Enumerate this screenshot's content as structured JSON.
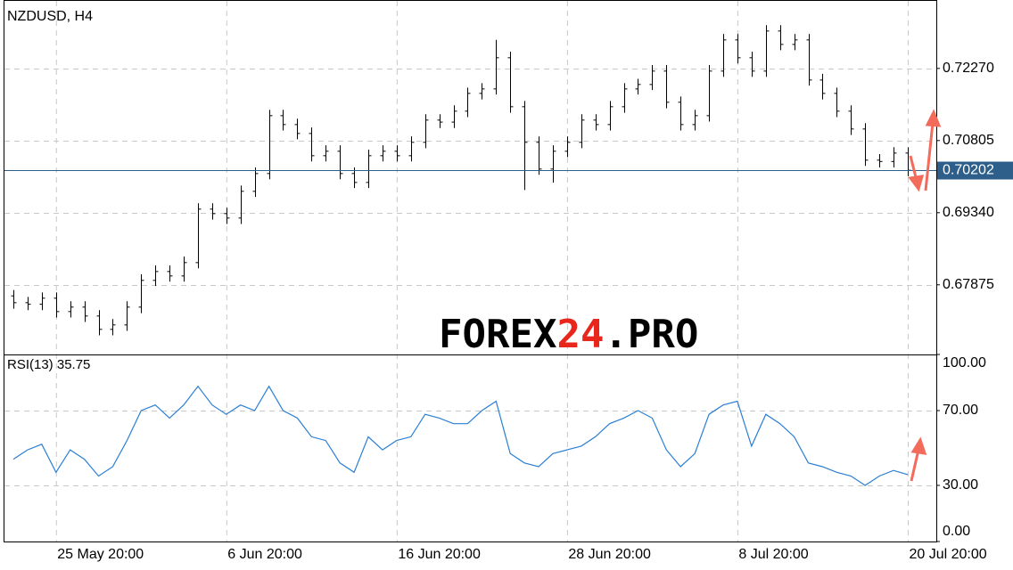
{
  "chart_data": [
    {
      "type": "ohlc",
      "title": "NZDUSD, H4",
      "color": "#000000",
      "last_price_color": "#2e5f8a",
      "watermark": [
        "FOREX",
        "24",
        ".PRO"
      ],
      "watermark_colors": [
        "#000000",
        "#e8261c",
        "#000000"
      ],
      "categories": [
        null,
        null,
        null,
        "25 May 20:00",
        null,
        null,
        null,
        null,
        null,
        null,
        null,
        null,
        null,
        null,
        null,
        "6 Jun 20:00",
        null,
        null,
        null,
        null,
        null,
        null,
        null,
        null,
        null,
        null,
        null,
        "16 Jun 20:00",
        null,
        null,
        null,
        null,
        null,
        null,
        null,
        null,
        null,
        null,
        null,
        "28 Jun 20:00",
        null,
        null,
        null,
        null,
        null,
        null,
        null,
        null,
        null,
        null,
        null,
        "8 Jul 20:00",
        null,
        null,
        null,
        null,
        null,
        null,
        null,
        null,
        null,
        null,
        null,
        "20 Jul 20:00"
      ],
      "open": [
        0.6765,
        0.67512,
        0.6748,
        0.67603,
        0.67331,
        0.67422,
        0.67241,
        0.6697,
        0.6706,
        0.67422,
        0.67965,
        0.68145,
        0.68055,
        0.68326,
        0.69412,
        0.69321,
        0.69231,
        0.69774,
        0.70135,
        0.71311,
        0.7113,
        0.70949,
        0.70497,
        0.70588,
        0.70135,
        0.69954,
        0.70497,
        0.70588,
        0.70497,
        0.70769,
        0.71221,
        0.7118,
        0.71402,
        0.71763,
        0.71854,
        0.72487,
        0.71492,
        0.70769,
        0.70226,
        0.70588,
        0.70769,
        0.71221,
        0.7113,
        0.71492,
        0.71854,
        0.71944,
        0.72216,
        0.71583,
        0.7113,
        0.71311,
        0.72216,
        0.72849,
        0.72487,
        0.72216,
        0.7303,
        0.72758,
        0.72849,
        0.72035,
        0.71763,
        0.71402,
        0.7104,
        0.70407,
        0.7038,
        0.70551
      ],
      "high": [
        0.6777,
        0.6763,
        0.6772,
        0.6772,
        0.6754,
        0.6754,
        0.6736,
        0.6718,
        0.6754,
        0.6809,
        0.6827,
        0.6827,
        0.6845,
        0.6953,
        0.6953,
        0.6944,
        0.6989,
        0.7026,
        0.7143,
        0.7143,
        0.7125,
        0.7107,
        0.7071,
        0.7071,
        0.7026,
        0.7062,
        0.7071,
        0.7071,
        0.7089,
        0.7134,
        0.7134,
        0.7152,
        0.7188,
        0.7197,
        0.7285,
        0.7261,
        0.7161,
        0.7089,
        0.7071,
        0.7089,
        0.7134,
        0.7134,
        0.7161,
        0.7197,
        0.7206,
        0.7234,
        0.7234,
        0.717,
        0.7143,
        0.7234,
        0.7297,
        0.7297,
        0.7261,
        0.7315,
        0.7315,
        0.7297,
        0.7297,
        0.7216,
        0.7188,
        0.7152,
        0.7116,
        0.7053,
        0.7067,
        0.7067
      ],
      "low": [
        0.6739,
        0.6736,
        0.6736,
        0.6721,
        0.6721,
        0.6712,
        0.6685,
        0.6685,
        0.6694,
        0.673,
        0.6785,
        0.6794,
        0.6794,
        0.6821,
        0.692,
        0.6911,
        0.6911,
        0.6966,
        0.7002,
        0.7101,
        0.7083,
        0.7038,
        0.7038,
        0.7002,
        0.6984,
        0.6984,
        0.7038,
        0.7038,
        0.7038,
        0.7065,
        0.7106,
        0.7106,
        0.7128,
        0.7164,
        0.7174,
        0.7137,
        0.698,
        0.7011,
        0.6995,
        0.7047,
        0.7065,
        0.7101,
        0.7101,
        0.7137,
        0.7174,
        0.7183,
        0.7146,
        0.7101,
        0.7101,
        0.7119,
        0.721,
        0.7237,
        0.721,
        0.721,
        0.7264,
        0.7264,
        0.7192,
        0.7164,
        0.7128,
        0.7092,
        0.7029,
        0.7026,
        0.7026,
        0.7008
      ],
      "close": [
        0.67512,
        0.6748,
        0.67603,
        0.67331,
        0.67422,
        0.67241,
        0.6697,
        0.6706,
        0.67422,
        0.67965,
        0.68145,
        0.68055,
        0.68326,
        0.69412,
        0.69321,
        0.69231,
        0.69774,
        0.70135,
        0.71311,
        0.7113,
        0.70949,
        0.70497,
        0.70588,
        0.70135,
        0.69954,
        0.70497,
        0.70588,
        0.70497,
        0.70769,
        0.71221,
        0.7118,
        0.71402,
        0.71763,
        0.71854,
        0.72487,
        0.71492,
        0.70769,
        0.70226,
        0.70588,
        0.70769,
        0.71221,
        0.7113,
        0.71492,
        0.71854,
        0.71944,
        0.72216,
        0.71583,
        0.7113,
        0.71311,
        0.72216,
        0.72849,
        0.72487,
        0.72216,
        0.7303,
        0.72758,
        0.72849,
        0.72035,
        0.71763,
        0.71402,
        0.7104,
        0.70407,
        0.7038,
        0.70551,
        0.70202
      ],
      "ylim": [
        0.6646,
        0.7366
      ],
      "yticks": [
        {
          "value": 0.67875,
          "label": "0.67875"
        },
        {
          "value": 0.6934,
          "label": "0.69340"
        },
        {
          "value": 0.70805,
          "label": "0.70805"
        },
        {
          "value": 0.7227,
          "label": "0.72270"
        }
      ],
      "grid": true
    },
    {
      "type": "line",
      "name": "RSI(13)",
      "color": "#2a7fd4",
      "values": [
        44,
        49,
        52,
        37,
        49,
        44,
        35,
        40,
        54,
        70,
        73,
        66,
        73,
        83,
        73,
        68,
        73,
        70,
        83,
        70,
        66,
        56,
        54,
        42,
        37,
        56,
        49,
        54,
        56,
        68,
        66,
        63,
        63,
        70,
        75,
        47,
        42,
        40,
        47,
        49,
        51,
        56,
        63,
        66,
        70,
        66,
        49,
        40,
        47,
        68,
        73,
        75,
        51,
        68,
        63,
        56,
        42,
        40,
        37,
        35,
        30,
        35,
        38,
        35.75
      ],
      "ylim": [
        0,
        100
      ],
      "yticks": [
        {
          "value": 0,
          "label": "0.00"
        },
        {
          "value": 30,
          "label": "30.00"
        },
        {
          "value": 70,
          "label": "70.00"
        },
        {
          "value": 100,
          "label": "100.00"
        }
      ],
      "grid": true
    }
  ]
}
